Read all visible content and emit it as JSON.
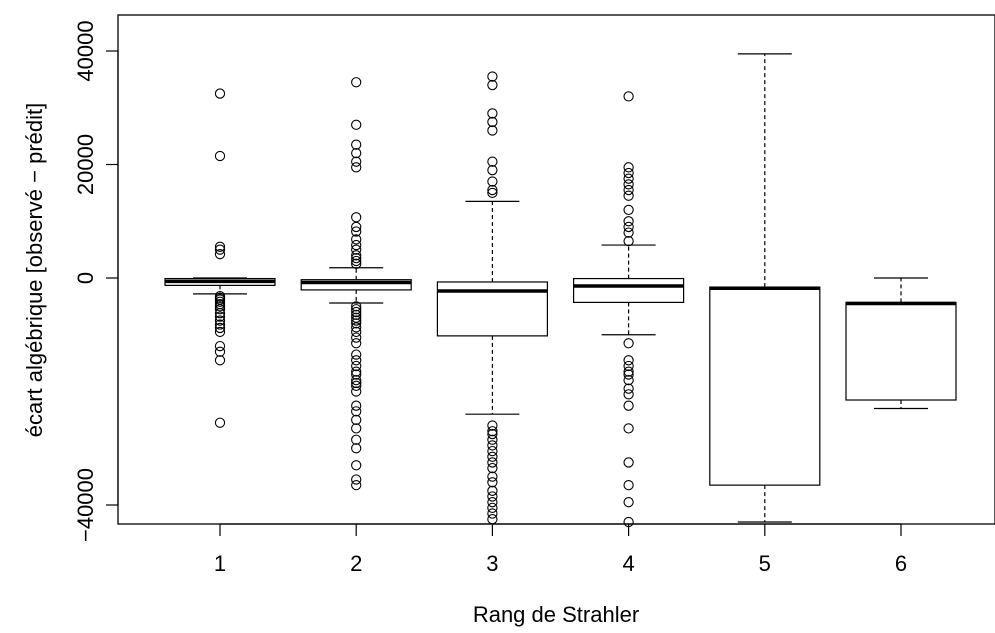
{
  "chart_data": {
    "type": "boxplot",
    "title": "",
    "xlabel": "Rang de Strahler",
    "ylabel": "écart algébrique [observé − prédit]",
    "ylim": [
      -43000,
      41000
    ],
    "yticks": [
      -40000,
      0,
      20000,
      40000
    ],
    "ytick_labels": [
      "−40000",
      "0",
      "20000",
      "40000"
    ],
    "grid": false,
    "categories": [
      "1",
      "2",
      "3",
      "4",
      "5",
      "6"
    ],
    "boxes": [
      {
        "category": "1",
        "whisker_low": -2800,
        "q1": -1300,
        "median": -600,
        "q3": -100,
        "whisker_high": 0,
        "outliers": [
          32500,
          21500,
          5500,
          5000,
          4200,
          -3200,
          -3500,
          -3800,
          -4200,
          -4600,
          -5000,
          -5500,
          -6200,
          -6800,
          -7500,
          -8200,
          -8800,
          -9500,
          -12000,
          -13000,
          -14500,
          -25500
        ]
      },
      {
        "category": "2",
        "whisker_low": -4400,
        "q1": -2100,
        "median": -800,
        "q3": -300,
        "whisker_high": 1800,
        "outliers": [
          34500,
          27000,
          23500,
          22000,
          20500,
          19500,
          10700,
          9000,
          8200,
          6800,
          5800,
          5000,
          4000,
          3500,
          3000,
          2500,
          -5000,
          -5500,
          -6000,
          -6500,
          -7000,
          -7500,
          -8000,
          -8700,
          -9500,
          -10500,
          -11500,
          -13500,
          -14500,
          -15500,
          -16500,
          -17000,
          -18000,
          -18500,
          -19000,
          -20000,
          -22500,
          -23500,
          -25000,
          -26500,
          -28500,
          -30000,
          -33000,
          -35500,
          -36500
        ]
      },
      {
        "category": "3",
        "whisker_low": -24000,
        "q1": -10200,
        "median": -2300,
        "q3": -700,
        "whisker_high": 13500,
        "outliers": [
          35500,
          34000,
          29000,
          27500,
          26000,
          20500,
          19000,
          17000,
          15500,
          15000,
          -26000,
          -27000,
          -27500,
          -28500,
          -29500,
          -30500,
          -31500,
          -32500,
          -33500,
          -35000,
          -36000,
          -37500,
          -38500,
          -39500,
          -40500,
          -41500,
          -42500
        ]
      },
      {
        "category": "4",
        "whisker_low": -10000,
        "q1": -4300,
        "median": -1400,
        "q3": -100,
        "whisker_high": 5800,
        "outliers": [
          32000,
          19500,
          18500,
          17500,
          16500,
          15500,
          14500,
          12000,
          10000,
          9000,
          8000,
          6500,
          -11500,
          -14500,
          -15500,
          -16500,
          -17000,
          -18000,
          -19500,
          -20500,
          -22500,
          -26500,
          -32500,
          -36500,
          -39500,
          -43000
        ]
      },
      {
        "category": "5",
        "whisker_low": -43000,
        "q1": -36500,
        "median": -1800,
        "q3": -1600,
        "whisker_high": 39500,
        "outliers": []
      },
      {
        "category": "6",
        "whisker_low": -23000,
        "q1": -21500,
        "median": -4500,
        "q3": -4300,
        "whisker_high": 0,
        "outliers": []
      }
    ]
  }
}
